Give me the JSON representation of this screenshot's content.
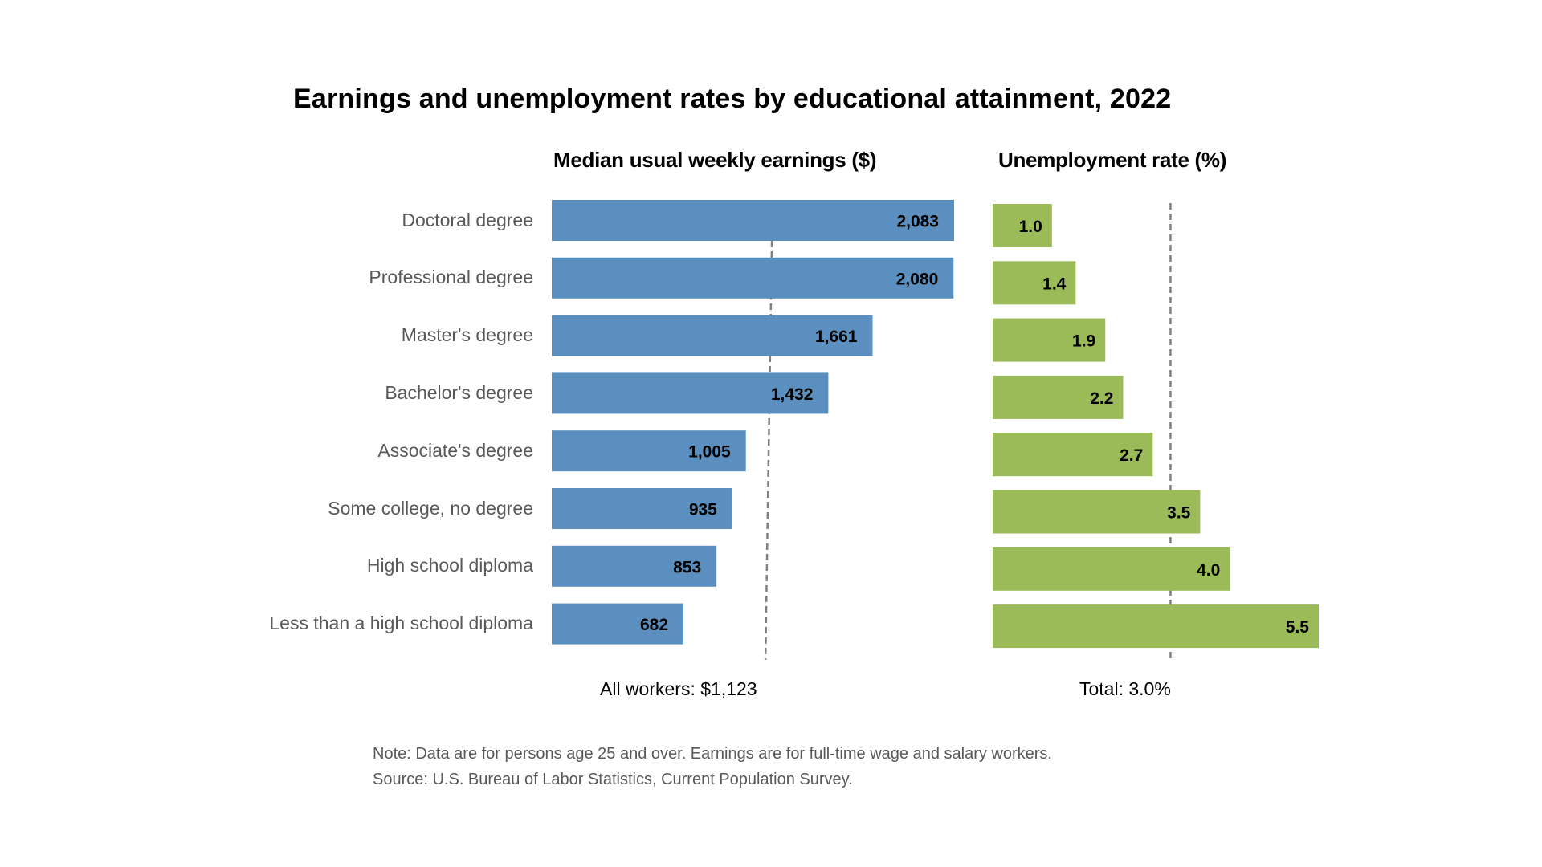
{
  "chart_data": [
    {
      "type": "bar",
      "orientation": "horizontal",
      "title": "Earnings and unemployment rates by educational attainment, 2022",
      "subtitle": "Median usual weekly earnings ($)",
      "categories": [
        "Doctoral degree",
        "Professional degree",
        "Master's degree",
        "Bachelor's degree",
        "Associate's degree",
        "Some college, no degree",
        "High school diploma",
        "Less than a high school diploma"
      ],
      "values": [
        2083,
        2080,
        1661,
        1432,
        1005,
        935,
        853,
        682
      ],
      "value_labels": [
        "2,083",
        "2,080",
        "1,661",
        "1,432",
        "1,005",
        "935",
        "853",
        "682"
      ],
      "reference_line": {
        "value": 1123,
        "label": "All workers: $1,123"
      },
      "color": "#5B8FBF",
      "xlim": [
        0,
        2083
      ],
      "grid": false
    },
    {
      "type": "bar",
      "orientation": "horizontal",
      "subtitle": "Unemployment rate (%)",
      "categories": [
        "Doctoral degree",
        "Professional degree",
        "Master's degree",
        "Bachelor's degree",
        "Associate's degree",
        "Some college, no degree",
        "High school diploma",
        "Less than a high school diploma"
      ],
      "values": [
        1.0,
        1.4,
        1.9,
        2.2,
        2.7,
        3.5,
        4.0,
        5.5
      ],
      "value_labels": [
        "1.0",
        "1.4",
        "1.9",
        "2.2",
        "2.7",
        "3.5",
        "4.0",
        "5.5"
      ],
      "reference_line": {
        "value": 3.0,
        "label": "Total: 3.0%"
      },
      "color": "#9BBB59",
      "xlim": [
        0,
        5.5
      ],
      "grid": false
    }
  ],
  "header": {
    "title": "Earnings and unemployment rates by educational attainment, 2022",
    "earnings_heading": "Median usual weekly earnings ($)",
    "unemployment_heading": "Unemployment rate (%)"
  },
  "categories": [
    "Doctoral degree",
    "Professional degree",
    "Master's degree",
    "Bachelor's degree",
    "Associate's degree",
    "Some college, no degree",
    "High school diploma",
    "Less than a high school diploma"
  ],
  "reference": {
    "earnings_label": "All workers: $1,123",
    "unemployment_label": "Total: 3.0%"
  },
  "footer": {
    "note": "Note: Data are for persons age 25 and over. Earnings are for full-time wage and salary workers.",
    "source": "Source: U.S. Bureau of Labor Statistics, Current Population Survey."
  },
  "colors": {
    "earnings_bar": "#5B8FBF",
    "unemployment_bar": "#9BBB59",
    "reference_line": "#808080"
  }
}
